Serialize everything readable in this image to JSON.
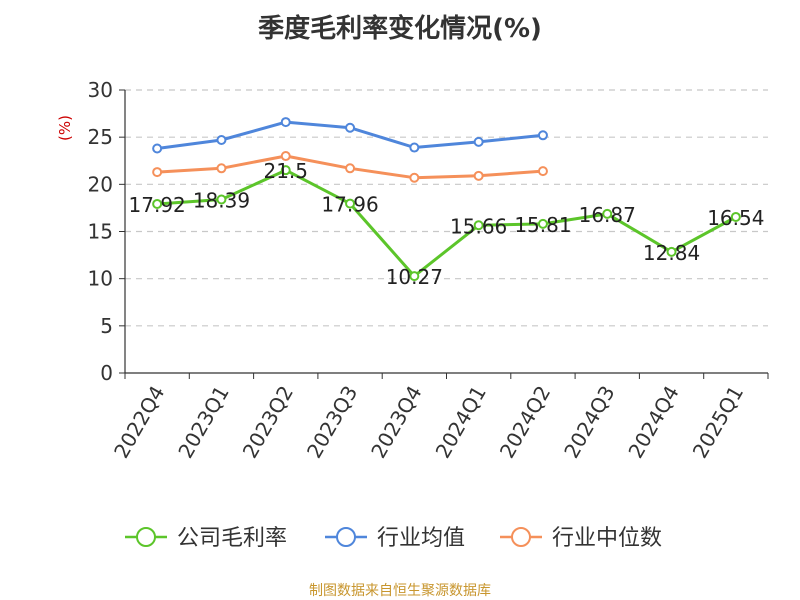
{
  "chart_data": {
    "type": "line",
    "title": "季度毛利率变化情况(%)",
    "ylabel": "(%)",
    "ylim": [
      0,
      30
    ],
    "yticks": [
      0,
      5,
      10,
      15,
      20,
      25,
      30
    ],
    "grid": true,
    "legend_position": "bottom",
    "categories": [
      "2022Q4",
      "2023Q1",
      "2023Q2",
      "2023Q3",
      "2023Q4",
      "2024Q1",
      "2024Q2",
      "2024Q3",
      "2024Q4",
      "2025Q1"
    ],
    "series": [
      {
        "name": "公司毛利率",
        "color": "#5cc52a",
        "show_labels": true,
        "values": [
          17.92,
          18.39,
          21.5,
          17.96,
          10.27,
          15.66,
          15.81,
          16.87,
          12.84,
          16.54
        ]
      },
      {
        "name": "行业均值",
        "color": "#4f86db",
        "show_labels": false,
        "values": [
          23.8,
          24.7,
          26.6,
          26.0,
          23.9,
          24.5,
          25.2,
          null,
          null,
          null
        ]
      },
      {
        "name": "行业中位数",
        "color": "#f5905a",
        "show_labels": false,
        "values": [
          21.3,
          21.7,
          23.0,
          21.7,
          20.7,
          20.9,
          21.4,
          null,
          null,
          null
        ]
      }
    ]
  },
  "source": "制图数据来自恒生聚源数据库",
  "colors": {
    "axis": "#333333",
    "grid": "#c8c8c8",
    "ylabel": "#cc0000",
    "source": "#c8962e"
  }
}
